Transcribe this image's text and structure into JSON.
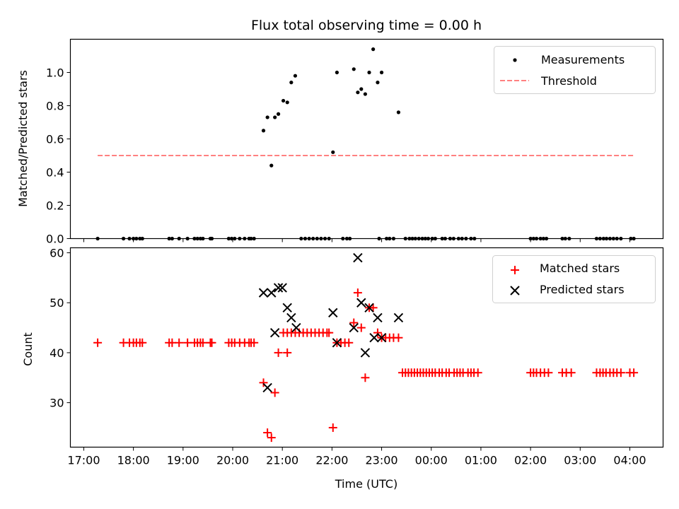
{
  "chart_data": [
    {
      "type": "scatter",
      "panel": "top",
      "title": "Flux total observing time = 0.00 h",
      "xlabel": "",
      "ylabel": "Matched/Predicted stars",
      "ylim": [
        0.0,
        1.2
      ],
      "yticks": [
        "0.0",
        "0.2",
        "0.4",
        "0.6",
        "0.8",
        "1.0"
      ],
      "ytick_values": [
        0.0,
        0.2,
        0.4,
        0.6,
        0.8,
        1.0
      ],
      "xlim_hours_from_1700": [
        -0.27,
        11.67
      ],
      "xtick_values_hours_from_1700": [
        0,
        1,
        2,
        3,
        4,
        5,
        6,
        7,
        8,
        9,
        10,
        11
      ],
      "legend": {
        "placement": "top-right",
        "entries": [
          "Measurements",
          "Threshold"
        ]
      },
      "series": [
        {
          "name": "Measurements",
          "color": "#000000",
          "marker": "dot",
          "points": [
            [
              0.28,
              0.0
            ],
            [
              0.8,
              0.0
            ],
            [
              0.92,
              0.0
            ],
            [
              1.0,
              0.0
            ],
            [
              1.06,
              0.0
            ],
            [
              1.13,
              0.0
            ],
            [
              1.18,
              0.0
            ],
            [
              1.72,
              0.0
            ],
            [
              1.78,
              0.0
            ],
            [
              1.92,
              0.0
            ],
            [
              2.09,
              0.0
            ],
            [
              2.23,
              0.0
            ],
            [
              2.29,
              0.0
            ],
            [
              2.35,
              0.0
            ],
            [
              2.4,
              0.0
            ],
            [
              2.55,
              0.0
            ],
            [
              2.58,
              0.0
            ],
            [
              2.92,
              0.0
            ],
            [
              2.98,
              0.0
            ],
            [
              3.04,
              0.0
            ],
            [
              3.14,
              0.0
            ],
            [
              3.24,
              0.0
            ],
            [
              3.33,
              0.0
            ],
            [
              3.37,
              0.0
            ],
            [
              3.43,
              0.0
            ],
            [
              3.62,
              0.65
            ],
            [
              3.7,
              0.73
            ],
            [
              3.78,
              0.44
            ],
            [
              3.85,
              0.73
            ],
            [
              3.92,
              0.75
            ],
            [
              4.02,
              0.83
            ],
            [
              4.1,
              0.82
            ],
            [
              4.18,
              0.94
            ],
            [
              4.26,
              0.98
            ],
            [
              4.38,
              0.0
            ],
            [
              4.46,
              0.0
            ],
            [
              4.54,
              0.0
            ],
            [
              4.62,
              0.0
            ],
            [
              4.7,
              0.0
            ],
            [
              4.78,
              0.0
            ],
            [
              4.86,
              0.0
            ],
            [
              4.94,
              0.0
            ],
            [
              5.02,
              0.52
            ],
            [
              5.1,
              1.0
            ],
            [
              5.22,
              0.0
            ],
            [
              5.3,
              0.0
            ],
            [
              5.36,
              0.0
            ],
            [
              5.44,
              1.02
            ],
            [
              5.52,
              0.88
            ],
            [
              5.59,
              0.9
            ],
            [
              5.67,
              0.87
            ],
            [
              5.75,
              1.0
            ],
            [
              5.83,
              1.14
            ],
            [
              5.92,
              0.94
            ],
            [
              6.0,
              1.0
            ],
            [
              5.95,
              0.0
            ],
            [
              6.1,
              0.0
            ],
            [
              6.16,
              0.0
            ],
            [
              6.24,
              0.0
            ],
            [
              6.34,
              0.76
            ],
            [
              6.48,
              0.0
            ],
            [
              6.56,
              0.0
            ],
            [
              6.62,
              0.0
            ],
            [
              6.68,
              0.0
            ],
            [
              6.75,
              0.0
            ],
            [
              6.82,
              0.0
            ],
            [
              6.88,
              0.0
            ],
            [
              6.94,
              0.0
            ],
            [
              7.02,
              0.0
            ],
            [
              7.08,
              0.0
            ],
            [
              7.22,
              0.0
            ],
            [
              7.28,
              0.0
            ],
            [
              7.38,
              0.0
            ],
            [
              7.45,
              0.0
            ],
            [
              7.55,
              0.0
            ],
            [
              7.62,
              0.0
            ],
            [
              7.7,
              0.0
            ],
            [
              7.8,
              0.0
            ],
            [
              7.87,
              0.0
            ],
            [
              9.0,
              0.0
            ],
            [
              9.06,
              0.0
            ],
            [
              9.12,
              0.0
            ],
            [
              9.2,
              0.0
            ],
            [
              9.26,
              0.0
            ],
            [
              9.32,
              0.0
            ],
            [
              9.64,
              0.0
            ],
            [
              9.7,
              0.0
            ],
            [
              9.78,
              0.0
            ],
            [
              10.33,
              0.0
            ],
            [
              10.4,
              0.0
            ],
            [
              10.47,
              0.0
            ],
            [
              10.53,
              0.0
            ],
            [
              10.6,
              0.0
            ],
            [
              10.67,
              0.0
            ],
            [
              10.74,
              0.0
            ],
            [
              10.82,
              0.0
            ],
            [
              11.02,
              0.0
            ],
            [
              11.08,
              0.0
            ]
          ]
        },
        {
          "name": "Threshold",
          "color": "#ff8080",
          "style": "dashed",
          "points": [
            [
              0.28,
              0.5
            ],
            [
              11.08,
              0.5
            ]
          ]
        }
      ]
    },
    {
      "type": "scatter",
      "panel": "bottom",
      "xlabel": "Time (UTC)",
      "ylabel": "Count",
      "ylim": [
        21.1,
        61.0
      ],
      "yticks": [
        "30",
        "40",
        "50",
        "60"
      ],
      "ytick_values": [
        30,
        40,
        50,
        60
      ],
      "xticks": [
        "17:00",
        "18:00",
        "19:00",
        "20:00",
        "21:00",
        "22:00",
        "23:00",
        "00:00",
        "01:00",
        "02:00",
        "03:00",
        "04:00"
      ],
      "xtick_values_hours_from_1700": [
        0,
        1,
        2,
        3,
        4,
        5,
        6,
        7,
        8,
        9,
        10,
        11
      ],
      "xlim_hours_from_1700": [
        -0.27,
        11.67
      ],
      "legend": {
        "placement": "top-right",
        "entries": [
          "Matched stars",
          "Predicted stars"
        ]
      },
      "series": [
        {
          "name": "Matched stars",
          "color": "#ff0000",
          "marker": "plus",
          "points": [
            [
              0.28,
              42
            ],
            [
              0.8,
              42
            ],
            [
              0.92,
              42
            ],
            [
              1.0,
              42
            ],
            [
              1.06,
              42
            ],
            [
              1.13,
              42
            ],
            [
              1.18,
              42
            ],
            [
              1.72,
              42
            ],
            [
              1.78,
              42
            ],
            [
              1.92,
              42
            ],
            [
              2.09,
              42
            ],
            [
              2.23,
              42
            ],
            [
              2.29,
              42
            ],
            [
              2.35,
              42
            ],
            [
              2.4,
              42
            ],
            [
              2.55,
              42
            ],
            [
              2.58,
              42
            ],
            [
              2.92,
              42
            ],
            [
              2.98,
              42
            ],
            [
              3.04,
              42
            ],
            [
              3.14,
              42
            ],
            [
              3.24,
              42
            ],
            [
              3.33,
              42
            ],
            [
              3.37,
              42
            ],
            [
              3.43,
              42
            ],
            [
              3.62,
              34
            ],
            [
              3.7,
              24
            ],
            [
              3.78,
              23
            ],
            [
              3.85,
              32
            ],
            [
              3.92,
              40
            ],
            [
              4.1,
              40
            ],
            [
              4.02,
              44
            ],
            [
              4.1,
              44
            ],
            [
              4.18,
              44
            ],
            [
              4.26,
              44
            ],
            [
              4.34,
              44
            ],
            [
              4.42,
              44
            ],
            [
              4.5,
              44
            ],
            [
              4.58,
              44
            ],
            [
              4.66,
              44
            ],
            [
              4.74,
              44
            ],
            [
              4.82,
              44
            ],
            [
              4.9,
              44
            ],
            [
              4.94,
              44
            ],
            [
              5.02,
              25
            ],
            [
              5.1,
              42
            ],
            [
              5.18,
              42
            ],
            [
              5.26,
              42
            ],
            [
              5.34,
              42
            ],
            [
              5.44,
              46
            ],
            [
              5.52,
              52
            ],
            [
              5.59,
              45
            ],
            [
              5.67,
              35
            ],
            [
              5.75,
              49
            ],
            [
              5.83,
              49
            ],
            [
              5.92,
              44
            ],
            [
              6.0,
              43
            ],
            [
              6.08,
              43
            ],
            [
              6.16,
              43
            ],
            [
              6.24,
              43
            ],
            [
              6.34,
              43
            ],
            [
              6.42,
              36
            ],
            [
              6.48,
              36
            ],
            [
              6.54,
              36
            ],
            [
              6.6,
              36
            ],
            [
              6.66,
              36
            ],
            [
              6.72,
              36
            ],
            [
              6.78,
              36
            ],
            [
              6.84,
              36
            ],
            [
              6.9,
              36
            ],
            [
              6.96,
              36
            ],
            [
              7.02,
              36
            ],
            [
              7.08,
              36
            ],
            [
              7.16,
              36
            ],
            [
              7.22,
              36
            ],
            [
              7.3,
              36
            ],
            [
              7.36,
              36
            ],
            [
              7.46,
              36
            ],
            [
              7.52,
              36
            ],
            [
              7.58,
              36
            ],
            [
              7.64,
              36
            ],
            [
              7.74,
              36
            ],
            [
              7.8,
              36
            ],
            [
              7.86,
              36
            ],
            [
              7.94,
              36
            ],
            [
              9.0,
              36
            ],
            [
              9.06,
              36
            ],
            [
              9.12,
              36
            ],
            [
              9.2,
              36
            ],
            [
              9.28,
              36
            ],
            [
              9.36,
              36
            ],
            [
              9.64,
              36
            ],
            [
              9.72,
              36
            ],
            [
              9.82,
              36
            ],
            [
              10.33,
              36
            ],
            [
              10.4,
              36
            ],
            [
              10.46,
              36
            ],
            [
              10.52,
              36
            ],
            [
              10.6,
              36
            ],
            [
              10.67,
              36
            ],
            [
              10.74,
              36
            ],
            [
              10.82,
              36
            ],
            [
              11.0,
              36
            ],
            [
              11.08,
              36
            ]
          ]
        },
        {
          "name": "Predicted stars",
          "color": "#000000",
          "marker": "x",
          "points": [
            [
              3.62,
              52
            ],
            [
              3.78,
              52
            ],
            [
              3.7,
              33
            ],
            [
              3.85,
              44
            ],
            [
              3.92,
              53
            ],
            [
              4.0,
              53
            ],
            [
              4.1,
              49
            ],
            [
              4.18,
              47
            ],
            [
              4.28,
              45
            ],
            [
              5.02,
              48
            ],
            [
              5.1,
              42
            ],
            [
              5.44,
              45
            ],
            [
              5.52,
              59
            ],
            [
              5.59,
              50
            ],
            [
              5.67,
              40
            ],
            [
              5.75,
              49
            ],
            [
              5.85,
              43
            ],
            [
              5.92,
              47
            ],
            [
              6.0,
              43
            ],
            [
              6.34,
              47
            ]
          ]
        }
      ]
    }
  ]
}
